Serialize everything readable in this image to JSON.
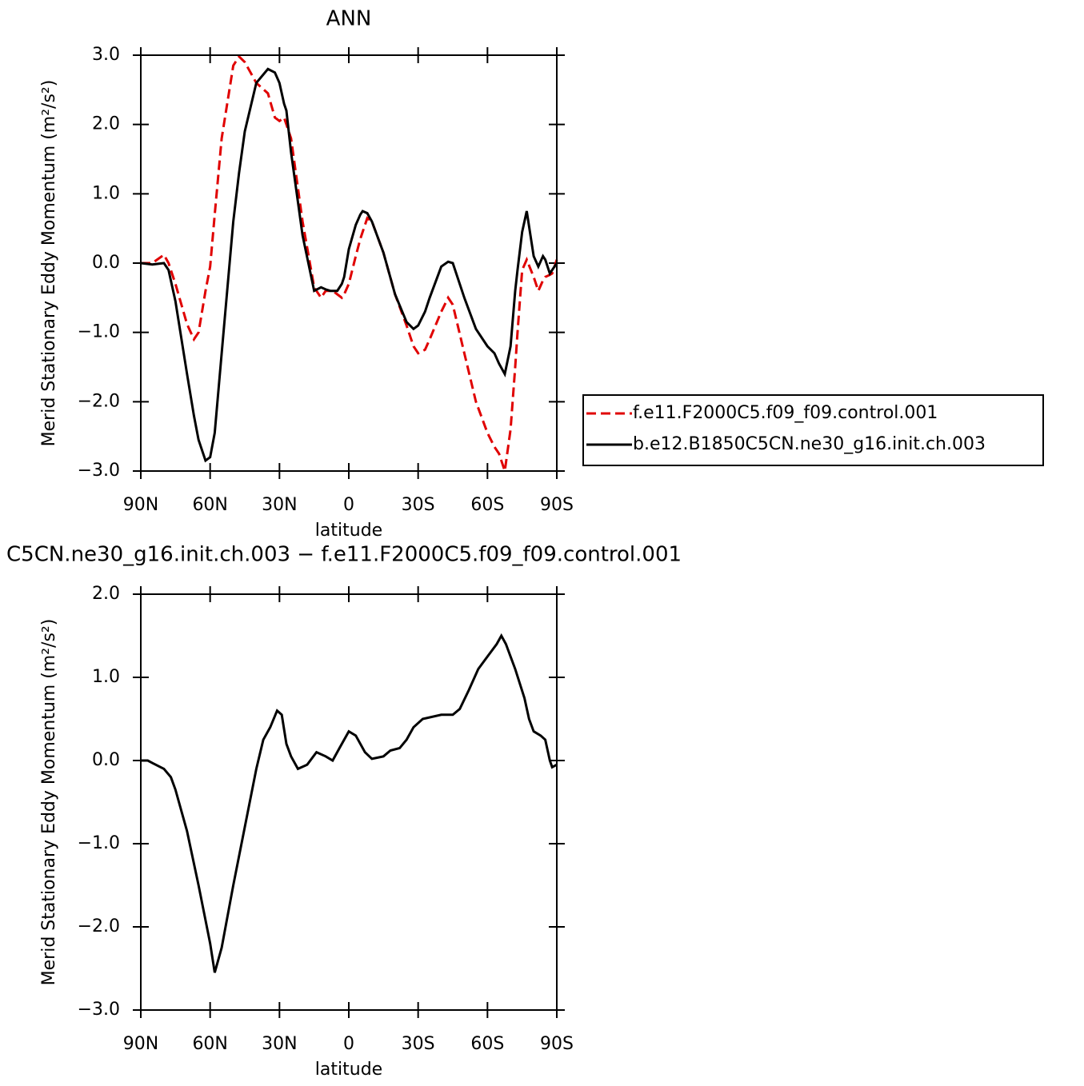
{
  "chart_data": [
    {
      "type": "line",
      "title": "ANN",
      "xlabel": "latitude",
      "ylabel": "Merid Stationary Eddy Momentum (m²/s²)",
      "x": [
        90,
        85,
        80,
        78,
        75,
        70,
        67,
        65,
        62,
        60,
        58,
        55,
        50,
        47.5,
        45,
        40,
        35,
        32,
        30,
        28,
        27,
        25,
        20,
        15,
        12,
        10,
        8,
        7,
        5,
        3,
        2,
        0,
        -3,
        -5,
        -6,
        -8,
        -10,
        -15,
        -20,
        -25,
        -28,
        -30,
        -33,
        -35,
        -40,
        -43,
        -45,
        -50,
        -55,
        -60,
        -63,
        -65,
        -67.5,
        -70,
        -72,
        -73,
        -75,
        -77,
        -80,
        -82,
        -84,
        -85,
        -87,
        -88,
        -90
      ],
      "series": [
        {
          "name": "f.e11.F2000C5.f09_f09.control.001",
          "color": "#e00000",
          "style": "dashed",
          "values": [
            0.0,
            0.0,
            0.12,
            0.0,
            -0.3,
            -0.88,
            -1.1,
            -1.0,
            -0.4,
            -0.05,
            0.7,
            1.8,
            2.85,
            2.98,
            2.9,
            2.6,
            2.45,
            2.1,
            2.05,
            2.1,
            2.0,
            1.8,
            0.6,
            -0.35,
            -0.5,
            -0.4,
            -0.4,
            -0.4,
            -0.45,
            -0.5,
            -0.45,
            -0.3,
            0.1,
            0.35,
            0.45,
            0.65,
            0.6,
            0.15,
            -0.45,
            -0.9,
            -1.2,
            -1.3,
            -1.25,
            -1.1,
            -0.7,
            -0.5,
            -0.6,
            -1.3,
            -2.0,
            -2.45,
            -2.65,
            -2.75,
            -3.0,
            -2.4,
            -1.5,
            -1.0,
            -0.1,
            0.05,
            -0.2,
            -0.4,
            -0.25,
            -0.2,
            -0.17,
            -0.15,
            0.05
          ]
        },
        {
          "name": "b.e12.B1850C5CN.ne30_g16.init.ch.003",
          "color": "#000000",
          "style": "solid",
          "values": [
            0.0,
            -0.02,
            0.0,
            -0.1,
            -0.55,
            -1.6,
            -2.2,
            -2.55,
            -2.85,
            -2.8,
            -2.45,
            -1.3,
            0.6,
            1.3,
            1.9,
            2.6,
            2.8,
            2.75,
            2.6,
            2.3,
            2.2,
            1.6,
            0.4,
            -0.4,
            -0.35,
            -0.38,
            -0.4,
            -0.4,
            -0.4,
            -0.3,
            -0.2,
            0.2,
            0.55,
            0.7,
            0.75,
            0.72,
            0.6,
            0.15,
            -0.45,
            -0.85,
            -0.95,
            -0.9,
            -0.7,
            -0.5,
            -0.05,
            0.02,
            0.0,
            -0.5,
            -0.95,
            -1.2,
            -1.3,
            -1.45,
            -1.6,
            -1.2,
            -0.4,
            -0.1,
            0.45,
            0.75,
            0.1,
            -0.05,
            0.1,
            0.05,
            -0.15,
            -0.1,
            0.0
          ]
        }
      ],
      "xlim": [
        90,
        -90
      ],
      "ylim": [
        -3,
        3
      ],
      "xticks": [
        {
          "value": 90,
          "label": "90N"
        },
        {
          "value": 60,
          "label": "60N"
        },
        {
          "value": 30,
          "label": "30N"
        },
        0,
        {
          "value": -30,
          "label": "30S"
        },
        {
          "value": -60,
          "label": "60S"
        },
        {
          "value": -90,
          "label": "90S"
        }
      ],
      "yticks": [
        {
          "value": -3,
          "label": "−3.0"
        },
        {
          "value": -2,
          "label": "−2.0"
        },
        {
          "value": -1,
          "label": "−1.0"
        },
        {
          "value": 0,
          "label": "0.0"
        },
        {
          "value": 1,
          "label": "1.0"
        },
        {
          "value": 2,
          "label": "2.0"
        },
        {
          "value": 3,
          "label": "3.0"
        }
      ],
      "legend": "right"
    },
    {
      "type": "line",
      "title": "C5CN.ne30_g16.init.ch.003 − f.e11.F2000C5.f09_f09.control.001",
      "xlabel": "latitude",
      "ylabel": "Merid Stationary Eddy Momentum (m²/s²)",
      "x": [
        90,
        87,
        85,
        80,
        77,
        75,
        70,
        65,
        60,
        58,
        55,
        50,
        45,
        40,
        37,
        34,
        31,
        29,
        27,
        25,
        22,
        18,
        14,
        10,
        7,
        4,
        0,
        -3,
        -7,
        -10,
        -15,
        -18,
        -22,
        -25,
        -28,
        -32,
        -40,
        -45,
        -48,
        -52,
        -56,
        -60,
        -64,
        -66,
        -68,
        -72,
        -76,
        -78,
        -80,
        -83,
        -85,
        -87,
        -88,
        -90
      ],
      "series": [
        {
          "color": "#000000",
          "style": "solid",
          "values": [
            0.0,
            0.0,
            -0.03,
            -0.1,
            -0.2,
            -0.35,
            -0.85,
            -1.5,
            -2.2,
            -2.55,
            -2.25,
            -1.5,
            -0.8,
            -0.1,
            0.25,
            0.4,
            0.6,
            0.55,
            0.2,
            0.05,
            -0.1,
            -0.05,
            0.1,
            0.05,
            0.0,
            0.15,
            0.35,
            0.3,
            0.1,
            0.02,
            0.05,
            0.12,
            0.15,
            0.25,
            0.4,
            0.5,
            0.55,
            0.55,
            0.62,
            0.85,
            1.1,
            1.25,
            1.4,
            1.5,
            1.4,
            1.1,
            0.75,
            0.5,
            0.35,
            0.3,
            0.25,
            0.0,
            -0.08,
            -0.05
          ]
        }
      ],
      "xlim": [
        90,
        -90
      ],
      "ylim": [
        -3,
        2
      ],
      "xticks": [
        {
          "value": 90,
          "label": "90N"
        },
        {
          "value": 60,
          "label": "60N"
        },
        {
          "value": 30,
          "label": "30N"
        },
        0,
        {
          "value": -30,
          "label": "30S"
        },
        {
          "value": -60,
          "label": "60S"
        },
        {
          "value": -90,
          "label": "90S"
        }
      ],
      "yticks": [
        {
          "value": -3,
          "label": "−3.0"
        },
        {
          "value": -2,
          "label": "−2.0"
        },
        {
          "value": -1,
          "label": "−1.0"
        },
        {
          "value": 0,
          "label": "0.0"
        },
        {
          "value": 1,
          "label": "1.0"
        },
        {
          "value": 2,
          "label": "2.0"
        }
      ]
    }
  ]
}
